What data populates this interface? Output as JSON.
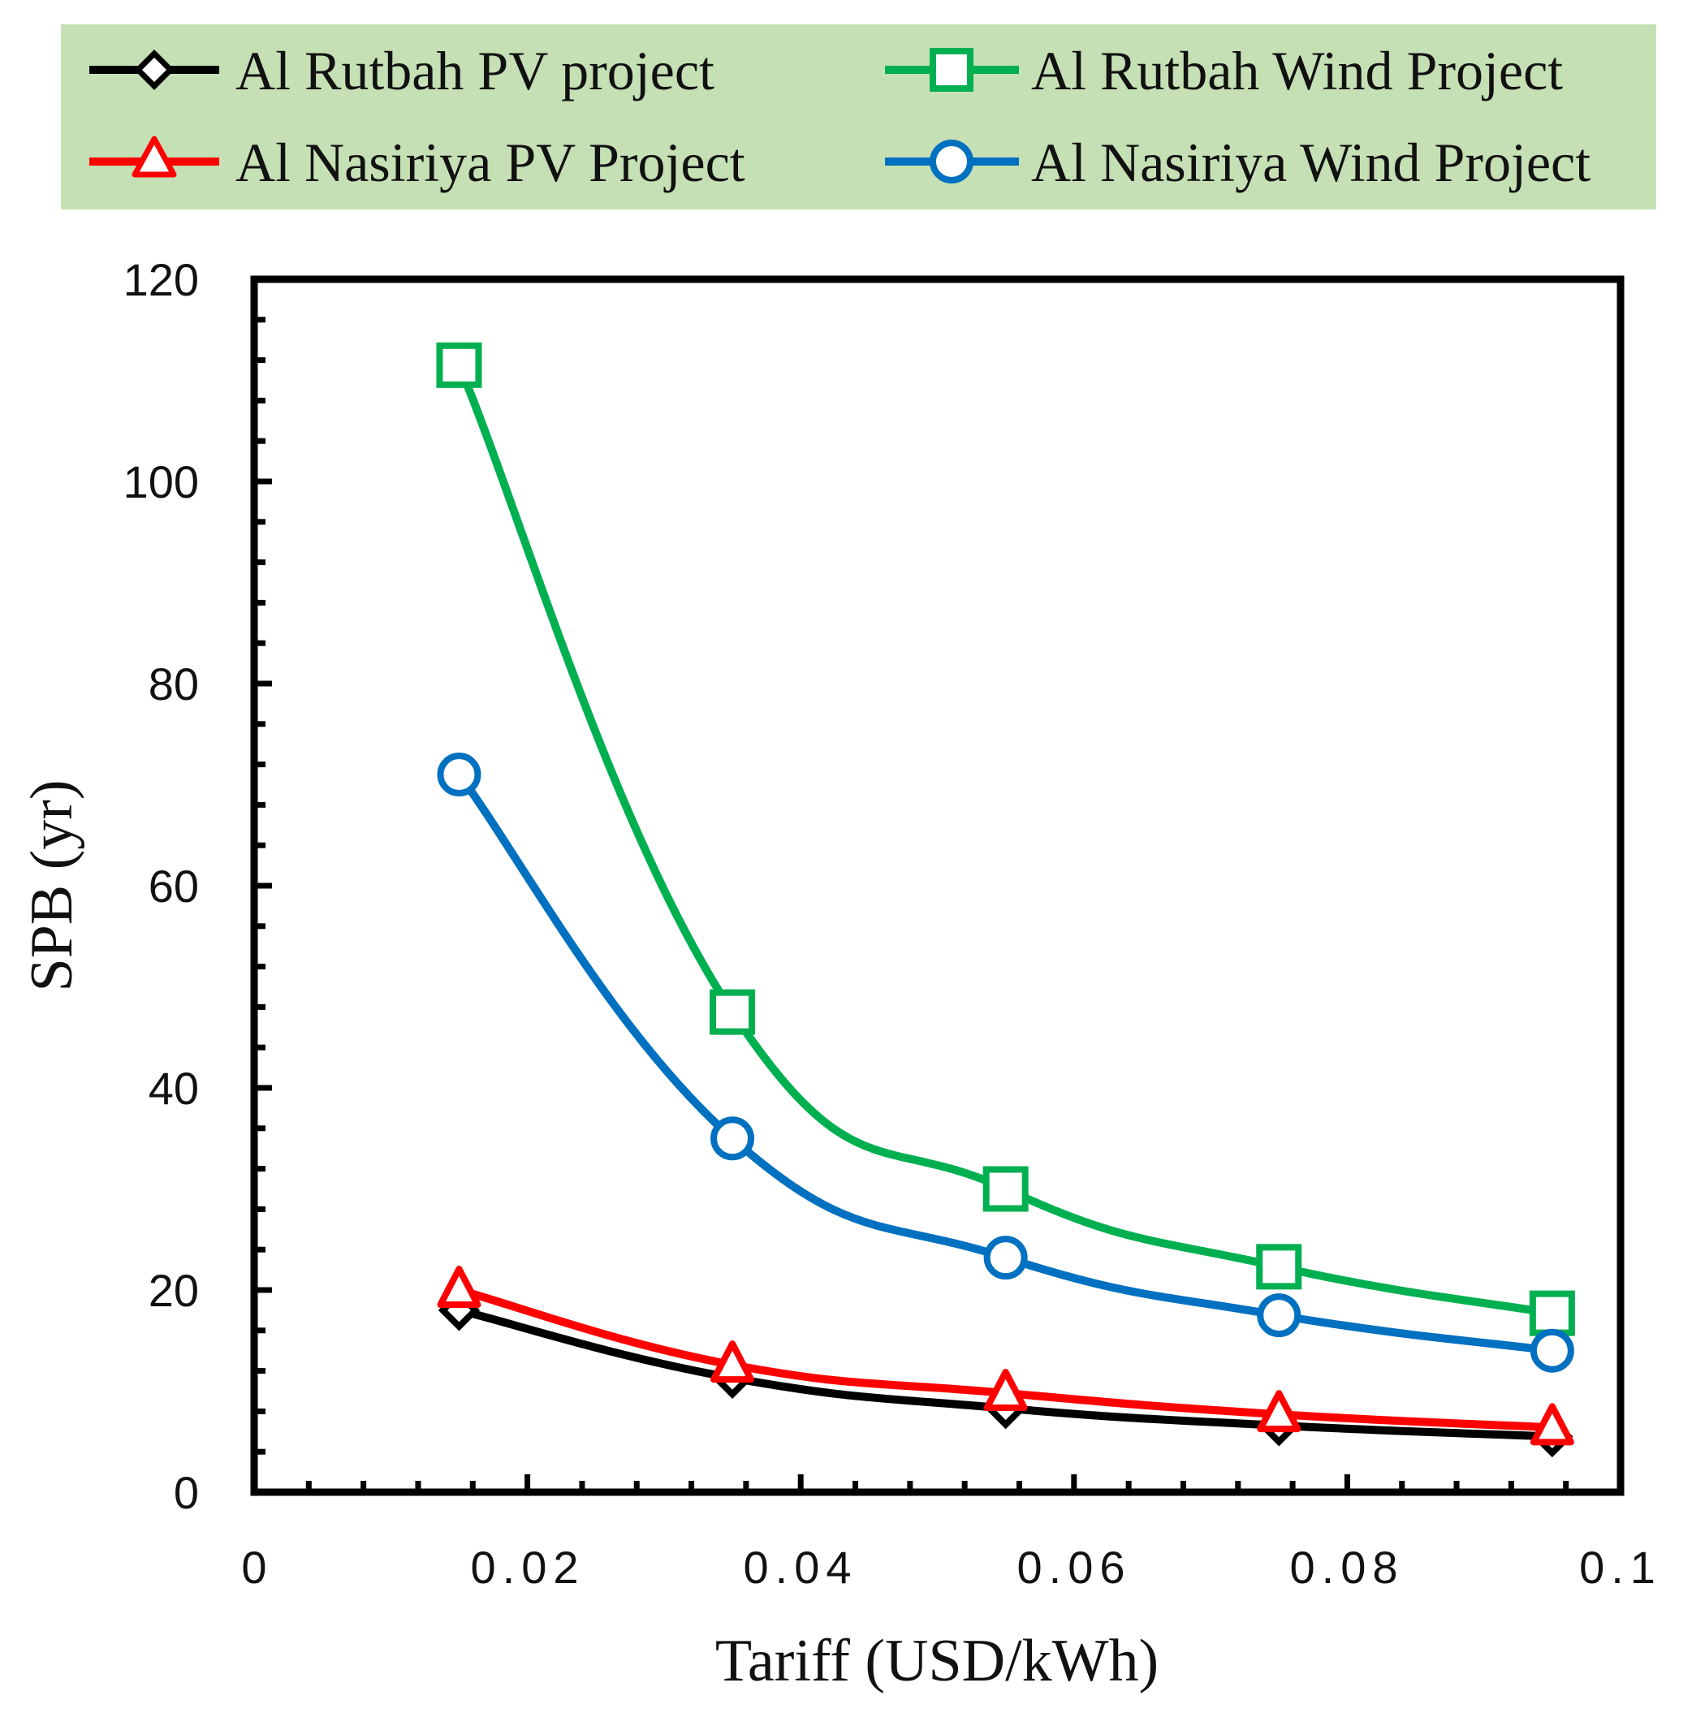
{
  "chart_data": {
    "type": "line",
    "title": "",
    "xlabel": "Tariff (USD/kWh)",
    "ylabel": "SPB (yr)",
    "xlim": [
      0,
      0.1
    ],
    "ylim": [
      0,
      120
    ],
    "x_ticks": [
      "0",
      "0.02",
      "0.04",
      "0.06",
      "0.08",
      "0.1"
    ],
    "x_tick_values": [
      0,
      0.02,
      0.04,
      0.06,
      0.08,
      0.1
    ],
    "y_ticks": [
      "0",
      "20",
      "40",
      "60",
      "80",
      "100",
      "120"
    ],
    "y_tick_values": [
      0,
      20,
      40,
      60,
      80,
      100,
      120
    ],
    "grid": false,
    "legend_position": "top",
    "legend_background": "#c5e0b4",
    "x": [
      0.015,
      0.035,
      0.055,
      0.075,
      0.095
    ],
    "series": [
      {
        "name": "Al Rutbah PV project",
        "marker": "diamond",
        "color": "#000000",
        "values": [
          18.0,
          11.3,
          8.3,
          6.6,
          5.5
        ]
      },
      {
        "name": "Al Rutbah Wind Project",
        "marker": "square",
        "color": "#00b050",
        "values": [
          111.5,
          47.5,
          30.0,
          22.3,
          17.7
        ]
      },
      {
        "name": "Al Nasiriya PV Project",
        "marker": "triangle",
        "color": "#ff0000",
        "values": [
          20.0,
          12.6,
          9.8,
          7.7,
          6.4
        ]
      },
      {
        "name": "Al Nasiriya Wind Project",
        "marker": "circle",
        "color": "#0070c0",
        "values": [
          71.0,
          35.0,
          23.2,
          17.5,
          14.0
        ]
      }
    ]
  }
}
